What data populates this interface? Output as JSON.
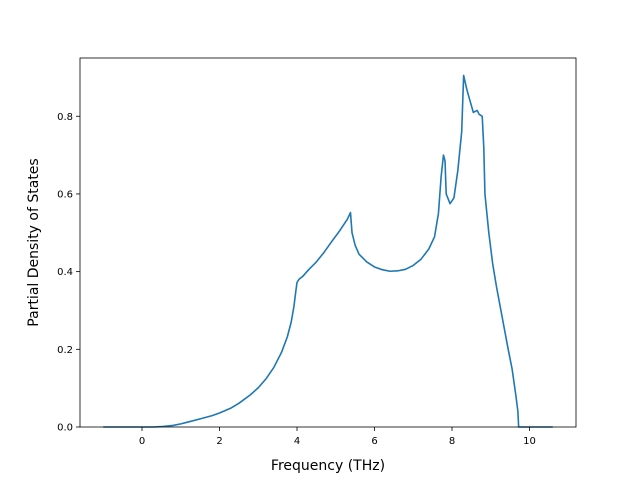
{
  "chart_data": {
    "type": "line",
    "title": "",
    "xlabel": "Frequency (THz)",
    "ylabel": "Partial Density of States",
    "xlim": [
      -1.6,
      11.2
    ],
    "ylim": [
      0.0,
      0.95
    ],
    "xticks": [
      0,
      2,
      4,
      6,
      8,
      10
    ],
    "yticks": [
      0.0,
      0.2,
      0.4,
      0.6,
      0.8
    ],
    "xtick_labels": [
      "0",
      "2",
      "4",
      "6",
      "8",
      "10"
    ],
    "ytick_labels": [
      "0.0",
      "0.2",
      "0.4",
      "0.6",
      "0.8"
    ],
    "grid": false,
    "legend": "none",
    "series": [
      {
        "color": "#1f77b4",
        "points": [
          [
            -1.0,
            0.0
          ],
          [
            0.0,
            0.0
          ],
          [
            0.3,
            0.0
          ],
          [
            0.5,
            0.001
          ],
          [
            0.8,
            0.004
          ],
          [
            1.0,
            0.008
          ],
          [
            1.2,
            0.013
          ],
          [
            1.5,
            0.021
          ],
          [
            1.8,
            0.029
          ],
          [
            2.0,
            0.036
          ],
          [
            2.3,
            0.049
          ],
          [
            2.5,
            0.061
          ],
          [
            2.8,
            0.083
          ],
          [
            3.0,
            0.101
          ],
          [
            3.2,
            0.124
          ],
          [
            3.4,
            0.153
          ],
          [
            3.6,
            0.192
          ],
          [
            3.75,
            0.232
          ],
          [
            3.85,
            0.27
          ],
          [
            3.92,
            0.31
          ],
          [
            3.97,
            0.35
          ],
          [
            4.0,
            0.372
          ],
          [
            4.05,
            0.38
          ],
          [
            4.15,
            0.388
          ],
          [
            4.3,
            0.405
          ],
          [
            4.5,
            0.425
          ],
          [
            4.7,
            0.45
          ],
          [
            4.9,
            0.478
          ],
          [
            5.1,
            0.505
          ],
          [
            5.3,
            0.535
          ],
          [
            5.38,
            0.552
          ],
          [
            5.42,
            0.5
          ],
          [
            5.5,
            0.468
          ],
          [
            5.6,
            0.445
          ],
          [
            5.8,
            0.425
          ],
          [
            6.0,
            0.412
          ],
          [
            6.2,
            0.405
          ],
          [
            6.4,
            0.401
          ],
          [
            6.6,
            0.402
          ],
          [
            6.8,
            0.406
          ],
          [
            7.0,
            0.416
          ],
          [
            7.2,
            0.432
          ],
          [
            7.4,
            0.458
          ],
          [
            7.55,
            0.49
          ],
          [
            7.65,
            0.55
          ],
          [
            7.72,
            0.645
          ],
          [
            7.78,
            0.7
          ],
          [
            7.82,
            0.685
          ],
          [
            7.85,
            0.6
          ],
          [
            7.95,
            0.575
          ],
          [
            8.05,
            0.59
          ],
          [
            8.15,
            0.66
          ],
          [
            8.25,
            0.76
          ],
          [
            8.3,
            0.905
          ],
          [
            8.38,
            0.87
          ],
          [
            8.45,
            0.845
          ],
          [
            8.55,
            0.81
          ],
          [
            8.65,
            0.815
          ],
          [
            8.7,
            0.805
          ],
          [
            8.78,
            0.8
          ],
          [
            8.82,
            0.72
          ],
          [
            8.85,
            0.6
          ],
          [
            8.95,
            0.5
          ],
          [
            9.05,
            0.42
          ],
          [
            9.15,
            0.36
          ],
          [
            9.3,
            0.28
          ],
          [
            9.45,
            0.2
          ],
          [
            9.55,
            0.15
          ],
          [
            9.65,
            0.08
          ],
          [
            9.7,
            0.04
          ],
          [
            9.72,
            0.0
          ],
          [
            10.0,
            0.0
          ],
          [
            10.6,
            0.0
          ]
        ]
      }
    ]
  }
}
